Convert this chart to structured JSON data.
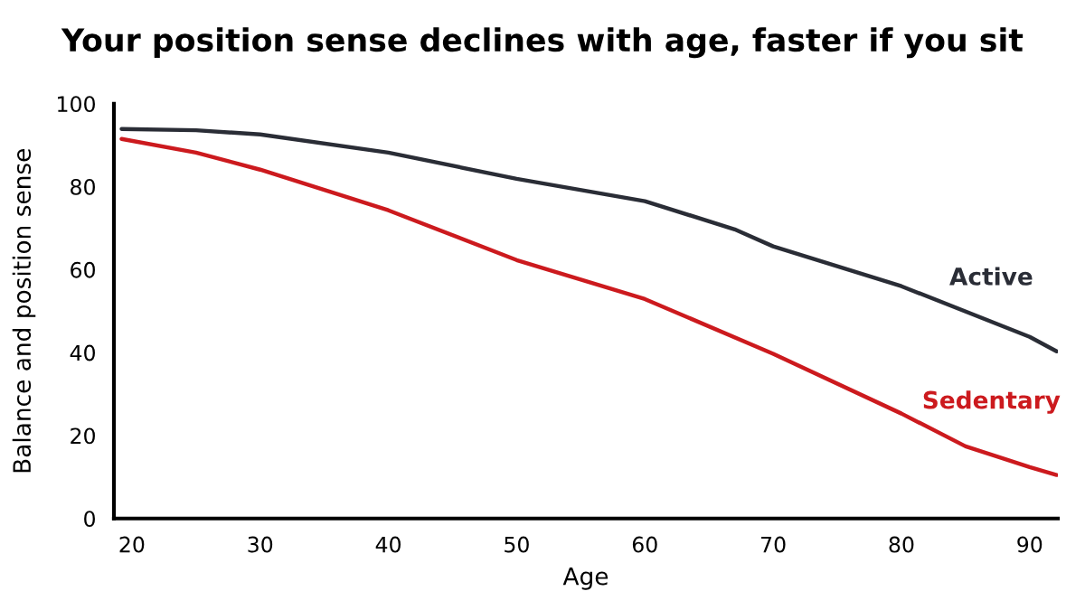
{
  "chart_data": {
    "type": "line",
    "title": "Your position sense declines with age, faster if you sit",
    "xlabel": "Age",
    "ylabel": "Balance and position sense",
    "xlim": [
      18.6,
      92.2
    ],
    "xticks": [
      20,
      30,
      40,
      50,
      60,
      70,
      80,
      90
    ],
    "ylim": [
      0,
      100
    ],
    "yticks": [
      0,
      20,
      40,
      60,
      80,
      100
    ],
    "grid": false,
    "legend": false,
    "marker": "none",
    "line_style": "solid",
    "series": [
      {
        "name": "Active",
        "color": "#2a2d36",
        "x": [
          19.2,
          25,
          30,
          40,
          50,
          60,
          67,
          70,
          80,
          90,
          92.1
        ],
        "values": [
          93.9,
          93.6,
          92.6,
          88.2,
          81.9,
          76.5,
          69.7,
          65.6,
          56.0,
          43.8,
          40.3
        ]
      },
      {
        "name": "Sedentary",
        "color": "#cc1a1e",
        "x": [
          19.2,
          25,
          30,
          40,
          50,
          60,
          70,
          80,
          85,
          90,
          92.1
        ],
        "values": [
          91.5,
          88.2,
          84.1,
          74.3,
          62.3,
          52.9,
          39.7,
          25.3,
          17.4,
          12.4,
          10.5
        ]
      }
    ]
  }
}
